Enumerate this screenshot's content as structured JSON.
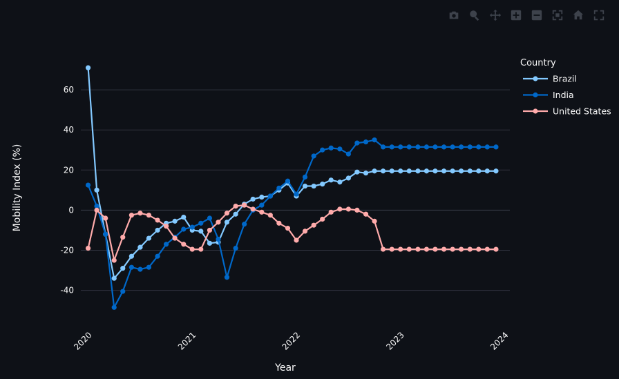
{
  "modebar": {
    "icons": [
      "camera-icon",
      "zoom-icon",
      "pan-icon",
      "zoom-in-icon",
      "zoom-out-icon",
      "autoscale-icon",
      "home-icon",
      "fullscreen-icon"
    ]
  },
  "chart_data": {
    "type": "line",
    "title": "",
    "xlabel": "Year",
    "ylabel": "Mobility Index (%)",
    "xlim": [
      2019.93,
      2024.05
    ],
    "ylim": [
      -57,
      80
    ],
    "x_ticks": [
      "2020",
      "2021",
      "2022",
      "2023",
      "2024"
    ],
    "y_ticks": [
      60,
      40,
      20,
      0,
      -20,
      -40
    ],
    "grid": true,
    "legend": {
      "title": "Country",
      "placement": "top-right"
    },
    "x": [
      2020.0,
      2020.083,
      2020.167,
      2020.25,
      2020.333,
      2020.417,
      2020.5,
      2020.583,
      2020.667,
      2020.75,
      2020.833,
      2020.917,
      2021.0,
      2021.083,
      2021.167,
      2021.25,
      2021.333,
      2021.417,
      2021.5,
      2021.583,
      2021.667,
      2021.75,
      2021.833,
      2021.917,
      2022.0,
      2022.083,
      2022.167,
      2022.25,
      2022.333,
      2022.417,
      2022.5,
      2022.583,
      2022.667,
      2022.75,
      2022.833,
      2022.917,
      2023.0,
      2023.083,
      2023.167,
      2023.25,
      2023.333,
      2023.417,
      2023.5,
      2023.583,
      2023.667,
      2023.75,
      2023.833,
      2023.917
    ],
    "series": [
      {
        "name": "Brazil",
        "color": "#83c9ff",
        "values": [
          71,
          10,
          -12,
          -34,
          -29,
          -23,
          -18.5,
          -14,
          -10,
          -6.5,
          -5.5,
          -3.5,
          -10,
          -10.5,
          -16.5,
          -16,
          -6,
          -2,
          3,
          5.5,
          6.5,
          7,
          10,
          13.5,
          7,
          12,
          12,
          13,
          15,
          14,
          16,
          19,
          18.5,
          19.5,
          19.5,
          19.5,
          19.5,
          19.5,
          19.5,
          19.5,
          19.5,
          19.5,
          19.5,
          19.5,
          19.5,
          19.5,
          19.5,
          19.5
        ]
      },
      {
        "name": "India",
        "color": "#0068c9",
        "values": [
          12.5,
          2,
          -12,
          -48.5,
          -40.5,
          -28.5,
          -29.5,
          -28.5,
          -23,
          -17,
          -13.5,
          -9.5,
          -8.5,
          -6.5,
          -4,
          -14.5,
          -33.5,
          -19,
          -7,
          0,
          2.5,
          7,
          11,
          14.5,
          8,
          16.5,
          27,
          30,
          31,
          30.5,
          28,
          33.5,
          34,
          35,
          31.5,
          31.5,
          31.5,
          31.5,
          31.5,
          31.5,
          31.5,
          31.5,
          31.5,
          31.5,
          31.5,
          31.5,
          31.5,
          31.5
        ]
      },
      {
        "name": "United States",
        "color": "#ffabab",
        "values": [
          -19,
          0,
          -4,
          -25,
          -13.5,
          -2.5,
          -1.5,
          -2.5,
          -5,
          -8,
          -14,
          -17,
          -19.5,
          -19.5,
          -10,
          -6,
          -1.5,
          2,
          2.5,
          0.5,
          -1,
          -2.5,
          -6.5,
          -9,
          -15,
          -10.5,
          -7.5,
          -4.5,
          -1,
          0.5,
          0.5,
          0,
          -2,
          -5.5,
          -19.5,
          -19.5,
          -19.5,
          -19.5,
          -19.5,
          -19.5,
          -19.5,
          -19.5,
          -19.5,
          -19.5,
          -19.5,
          -19.5,
          -19.5,
          -19.5
        ]
      }
    ]
  }
}
